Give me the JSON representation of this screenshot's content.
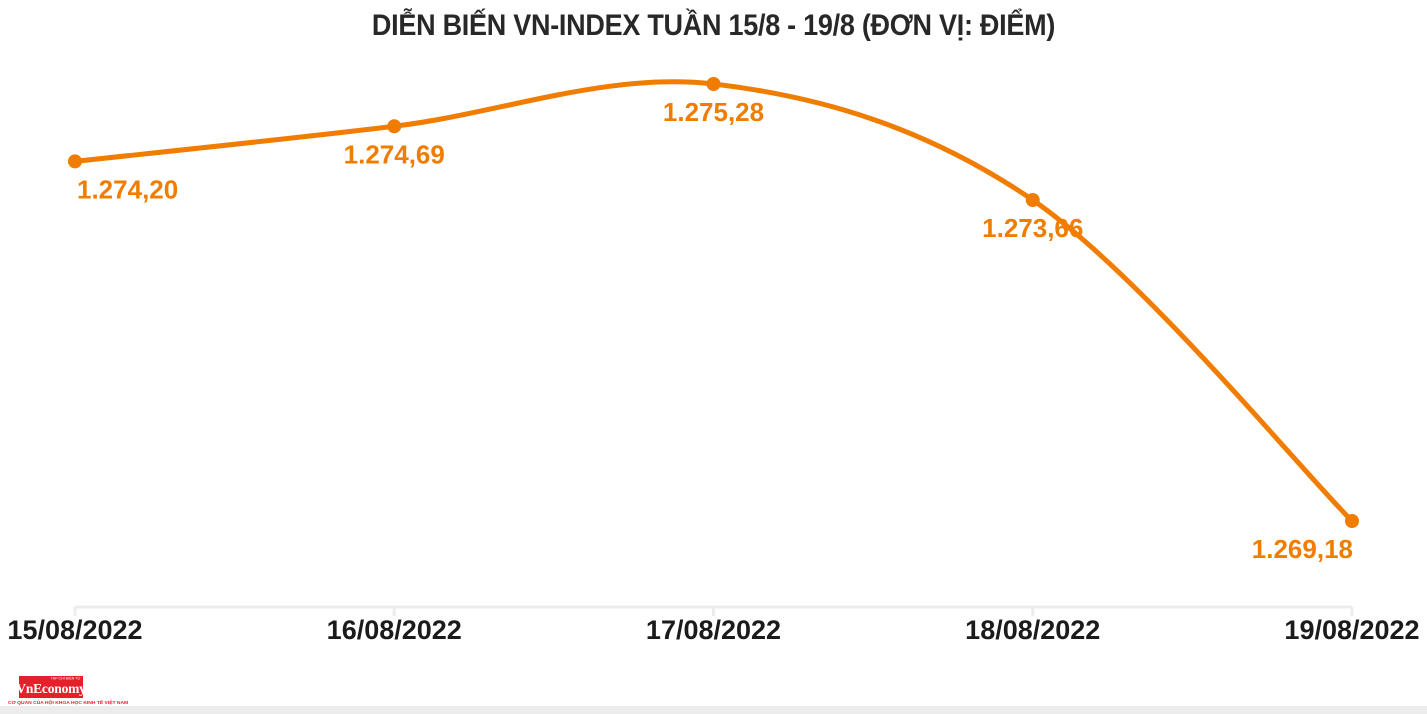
{
  "chart_data": {
    "type": "line",
    "title": "DIỄN BIẾN VN-INDEX TUẦN 15/8 - 19/8 (ĐƠN VỊ: ĐIỂM)",
    "series_name": "VN-INDEX",
    "categories": [
      "15/08/2022",
      "16/08/2022",
      "17/08/2022",
      "18/08/2022",
      "19/08/2022"
    ],
    "values": [
      1274.2,
      1274.69,
      1275.28,
      1273.66,
      1269.18
    ],
    "value_labels": [
      "1.274,20",
      "1.274,69",
      "1.275,28",
      "1.273,66",
      "1.269,18"
    ],
    "xlabel": "",
    "ylabel": "ĐIỂM",
    "ylim": [
      1269.18,
      1275.28
    ],
    "colors": {
      "line": "#F07C00",
      "point": "#F07C00",
      "value_label": "#F07C00",
      "axis": "#ECECEC",
      "tick_label": "#1B1B1B",
      "title": "#282828"
    },
    "layout": {
      "smooth": true,
      "grid": false,
      "legend": false,
      "y_axis_visible": false,
      "label_anchors": [
        "start",
        "middle",
        "middle",
        "middle",
        "end"
      ]
    }
  },
  "footer": {
    "logo_text": "VnEconomy",
    "logo_small_text": "TẠP CHÍ ĐIỆN TỬ",
    "logo_tagline": "CƠ QUAN CỦA HỘI KHOA HỌC KINH TẾ VIỆT NAM",
    "logo_bg_color": "#E6202B",
    "logo_text_color": "#FFFFFF"
  }
}
